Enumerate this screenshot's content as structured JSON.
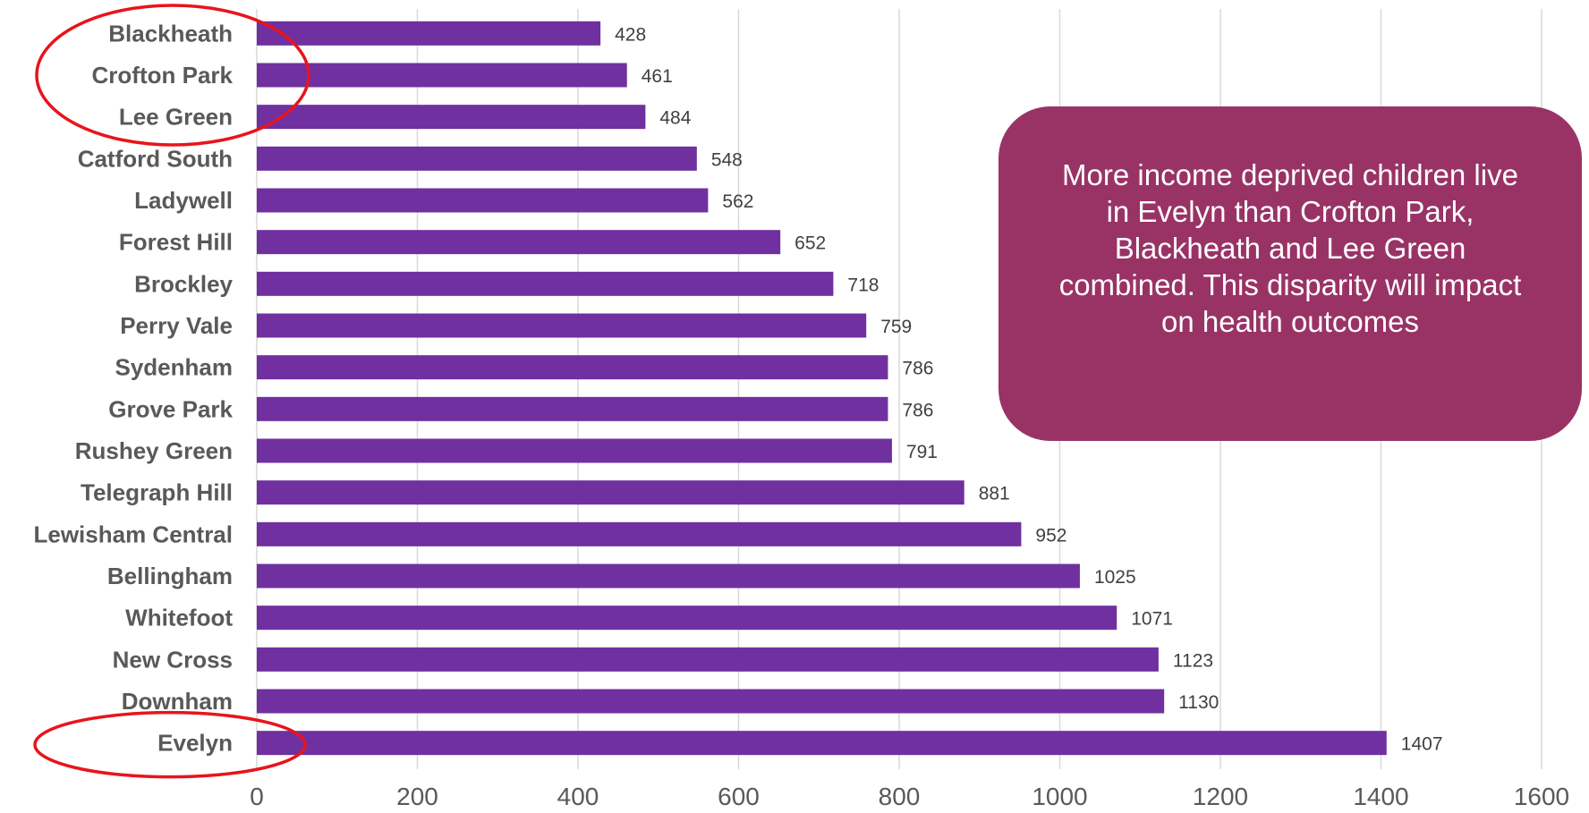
{
  "colors": {
    "bar": "#7030a0",
    "callout_bg": "#993366",
    "highlight_ring": "#e8141b",
    "gridline": "#d9d9d9",
    "axis_text": "#595959"
  },
  "callout": {
    "text": "More income deprived children live in Evelyn than Crofton Park, Blackheath and Lee Green combined. This disparity will impact on health outcomes"
  },
  "highlights": [
    "Blackheath",
    "Crofton Park",
    "Lee Green",
    "Evelyn"
  ],
  "chart_data": {
    "type": "bar",
    "orientation": "horizontal",
    "categories": [
      "Blackheath",
      "Crofton Park",
      "Lee Green",
      "Catford South",
      "Ladywell",
      "Forest Hill",
      "Brockley",
      "Perry Vale",
      "Sydenham",
      "Grove Park",
      "Rushey Green",
      "Telegraph Hill",
      "Lewisham Central",
      "Bellingham",
      "Whitefoot",
      "New Cross",
      "Downham",
      "Evelyn"
    ],
    "values": [
      428,
      461,
      484,
      548,
      562,
      652,
      718,
      759,
      786,
      786,
      791,
      881,
      952,
      1025,
      1071,
      1123,
      1130,
      1407
    ],
    "data_labels": true,
    "xlim": [
      0,
      1600
    ],
    "xticks": [
      0,
      200,
      400,
      600,
      800,
      1000,
      1200,
      1400,
      1600
    ],
    "grid": "vertical",
    "legend": "none",
    "title": "",
    "xlabel": "",
    "ylabel": ""
  }
}
